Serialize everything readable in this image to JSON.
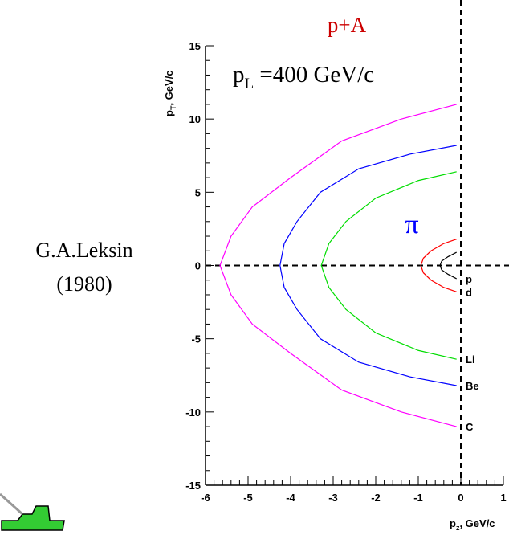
{
  "chart_data": {
    "type": "line",
    "title": "p+A",
    "annotation": {
      "main": "p",
      "sub": "L",
      "rest": " =400 GeV/c"
    },
    "symbol": "π",
    "author": [
      "G.A.Leksin",
      "(1980)"
    ],
    "y_label": {
      "main": "p",
      "sub": "T",
      "rest": ", GeV/c"
    },
    "x_label": {
      "main": "p",
      "sub": "z",
      "rest": ", GeV/c"
    },
    "xlim": [
      -6,
      1
    ],
    "ylim": [
      -15,
      15
    ],
    "xticks": [
      -6,
      -5,
      -4,
      -3,
      -2,
      -1,
      0,
      1
    ],
    "yticks": [
      -15,
      -10,
      -5,
      0,
      5,
      10,
      15
    ],
    "hlines": [
      0
    ],
    "vlines": [
      0
    ],
    "series": [
      {
        "name": "C",
        "color": "#ff00ff",
        "x": [
          -0.1,
          -1.4,
          -2.8,
          -4.0,
          -4.9,
          -5.4,
          -5.66,
          -5.4,
          -4.9,
          -4.0,
          -2.8,
          -1.4,
          -0.1
        ],
        "values": [
          11,
          10,
          8.5,
          6,
          4,
          2,
          0,
          -2,
          -4,
          -6,
          -8.5,
          -10,
          -11
        ]
      },
      {
        "name": "Be",
        "color": "#0000ff",
        "x": [
          -0.1,
          -1.2,
          -2.4,
          -3.3,
          -3.85,
          -4.15,
          -4.25,
          -4.15,
          -3.85,
          -3.3,
          -2.4,
          -1.2,
          -0.1
        ],
        "values": [
          8.2,
          7.6,
          6.6,
          5,
          3,
          1.5,
          0,
          -1.5,
          -3,
          -5,
          -6.6,
          -7.6,
          -8.2
        ]
      },
      {
        "name": "Li",
        "color": "#00dd00",
        "x": [
          -0.1,
          -1.0,
          -2.0,
          -2.7,
          -3.1,
          -3.28,
          -3.1,
          -2.7,
          -2.0,
          -1.0,
          -0.1
        ],
        "values": [
          6.4,
          5.8,
          4.6,
          3,
          1.5,
          0,
          -1.5,
          -3,
          -4.6,
          -5.8,
          -6.4
        ]
      },
      {
        "name": "d",
        "color": "#ff0000",
        "x": [
          -0.1,
          -0.4,
          -0.7,
          -0.88,
          -0.94,
          -0.88,
          -0.7,
          -0.4,
          -0.1
        ],
        "values": [
          1.8,
          1.5,
          1.0,
          0.5,
          0,
          -0.5,
          -1.0,
          -1.5,
          -1.8
        ]
      },
      {
        "name": "p",
        "color": "#000000",
        "x": [
          -0.1,
          -0.3,
          -0.45,
          -0.49,
          -0.45,
          -0.3,
          -0.1
        ],
        "values": [
          0.9,
          0.6,
          0.3,
          0,
          -0.3,
          -0.6,
          -0.9
        ]
      }
    ]
  }
}
